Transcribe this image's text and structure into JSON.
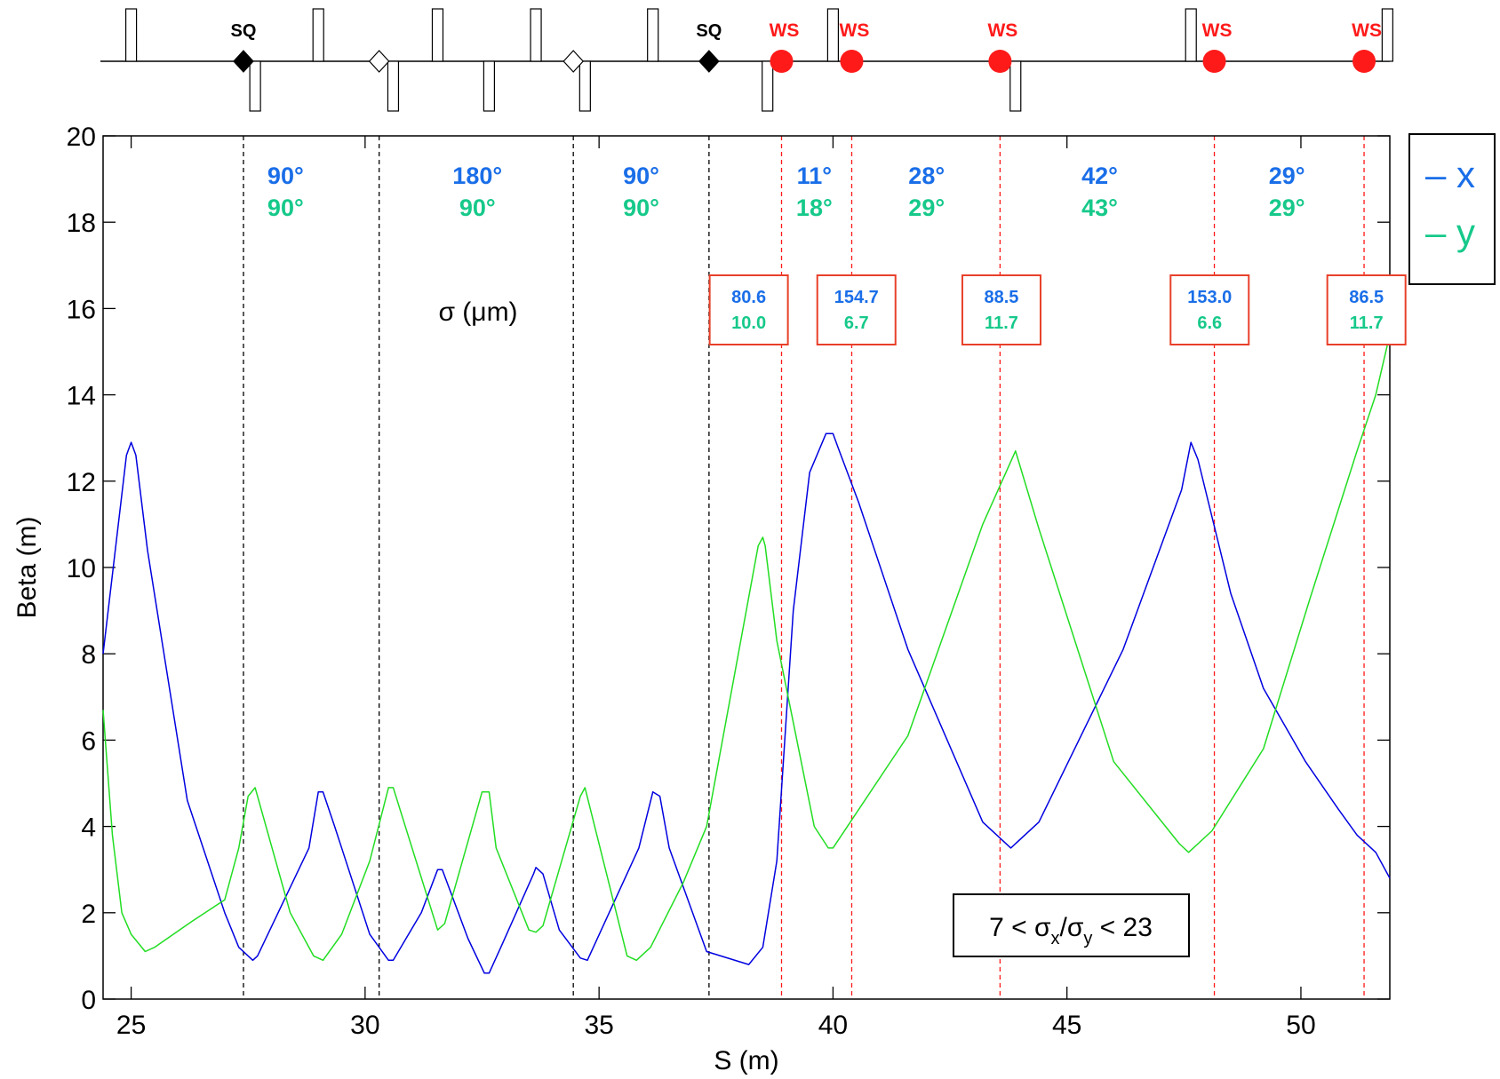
{
  "chart_data": {
    "type": "line",
    "xlabel": "S (m)",
    "ylabel": "Beta (m)",
    "xlim": [
      24.4,
      51.9
    ],
    "ylim": [
      0,
      20
    ],
    "x_ticks": [
      "25",
      "30",
      "35",
      "40",
      "45",
      "50"
    ],
    "y_ticks": [
      "0",
      "2",
      "4",
      "6",
      "8",
      "10",
      "12",
      "14",
      "16",
      "18",
      "20"
    ],
    "colors": {
      "x": "#0000e0",
      "y": "#22dd22",
      "x_label": "#1a6ee8",
      "y_label": "#16c98a",
      "ws": "#ff1a1a",
      "box": "#e8402a"
    },
    "series": [
      {
        "name": "x",
        "x": [
          24.4,
          24.9,
          25.0,
          25.1,
          25.35,
          26.2,
          27.0,
          27.3,
          27.6,
          27.7,
          28.8,
          29.0,
          29.1,
          29.35,
          30.1,
          30.5,
          30.6,
          31.2,
          31.55,
          31.65,
          32.2,
          32.55,
          32.65,
          32.9,
          33.6,
          33.65,
          33.8,
          34.15,
          34.6,
          34.75,
          35.85,
          36.15,
          36.3,
          36.5,
          37.3,
          38.2,
          38.5,
          38.8,
          39.15,
          39.5,
          39.85,
          40.0,
          40.1,
          40.55,
          41.6,
          43.2,
          43.8,
          44.4,
          46.2,
          47.45,
          47.65,
          47.8,
          48.5,
          49.2,
          50.1,
          50.8,
          51.2,
          51.6,
          51.9
        ],
        "y": [
          8.0,
          12.6,
          12.9,
          12.6,
          10.4,
          4.6,
          2.0,
          1.2,
          0.9,
          1.0,
          3.5,
          4.8,
          4.8,
          4.0,
          1.5,
          0.9,
          0.9,
          2.0,
          3.0,
          3.0,
          1.4,
          0.6,
          0.6,
          1.2,
          2.9,
          3.05,
          2.9,
          1.6,
          0.95,
          0.9,
          3.5,
          4.8,
          4.7,
          3.5,
          1.1,
          0.8,
          1.2,
          3.2,
          9.0,
          12.2,
          13.1,
          13.1,
          12.8,
          11.5,
          8.1,
          4.1,
          3.5,
          4.1,
          8.1,
          11.8,
          12.9,
          12.5,
          9.4,
          7.2,
          5.5,
          4.4,
          3.8,
          3.4,
          2.8
        ]
      },
      {
        "name": "y",
        "x": [
          24.4,
          24.6,
          24.8,
          25.0,
          25.3,
          25.5,
          26.3,
          27.0,
          27.3,
          27.5,
          27.65,
          28.4,
          28.9,
          29.1,
          29.5,
          30.1,
          30.5,
          30.6,
          31.55,
          31.7,
          32.5,
          32.65,
          32.8,
          33.5,
          33.65,
          33.8,
          34.6,
          34.7,
          35.6,
          35.8,
          36.1,
          36.8,
          37.3,
          38.4,
          38.5,
          38.55,
          38.8,
          39.6,
          39.9,
          40.0,
          41.6,
          43.2,
          43.9,
          44.4,
          46.0,
          47.4,
          47.6,
          48.1,
          49.2,
          50.2,
          51.2,
          51.6,
          51.9
        ],
        "y": [
          6.7,
          3.8,
          2.0,
          1.5,
          1.1,
          1.2,
          1.8,
          2.3,
          3.5,
          4.7,
          4.9,
          2.0,
          1.0,
          0.9,
          1.5,
          3.2,
          4.9,
          4.9,
          1.6,
          1.75,
          4.8,
          4.8,
          3.5,
          1.6,
          1.55,
          1.7,
          4.7,
          4.9,
          1.0,
          0.9,
          1.2,
          2.7,
          4.0,
          10.5,
          10.7,
          10.5,
          8.3,
          4.0,
          3.5,
          3.5,
          6.1,
          11.0,
          12.7,
          10.9,
          5.5,
          3.6,
          3.4,
          3.9,
          5.8,
          9.3,
          12.7,
          14.0,
          15.4
        ]
      }
    ],
    "legend": {
      "position": "outside-right",
      "entries": [
        {
          "label": "– x",
          "color": "#1a6ee8"
        },
        {
          "label": "– y",
          "color": "#16c98a"
        }
      ]
    },
    "sigma_label": "σ (μm)",
    "ratio_box": {
      "pre": "7 < σ",
      "sub_x": "x",
      "mid": "/σ",
      "sub_y": "y",
      "post": " < 23"
    },
    "segment_lines": [
      {
        "x": 27.4,
        "color": "black"
      },
      {
        "x": 30.3,
        "color": "black"
      },
      {
        "x": 34.45,
        "color": "black"
      },
      {
        "x": 37.35,
        "color": "black"
      },
      {
        "x": 38.9,
        "color": "red"
      },
      {
        "x": 40.4,
        "color": "red"
      },
      {
        "x": 43.57,
        "color": "red"
      },
      {
        "x": 48.15,
        "color": "red"
      },
      {
        "x": 51.35,
        "color": "red"
      }
    ],
    "phase_advances": [
      {
        "x": 28.3,
        "px": "90°",
        "py": "90°"
      },
      {
        "x": 29.9,
        "px": "",
        "py": ""
      },
      {
        "x": 32.4,
        "px": "180°",
        "py": "90°"
      },
      {
        "x": 35.9,
        "px": "90°",
        "py": "90°"
      },
      {
        "x": 39.6,
        "px": "11°",
        "py": "18°"
      },
      {
        "x": 42.0,
        "px": "28°",
        "py": "29°"
      },
      {
        "x": 45.7,
        "px": "42°",
        "py": "43°"
      },
      {
        "x": 49.7,
        "px": "29°",
        "py": "29°"
      }
    ],
    "beam_sizes": [
      {
        "x": 38.2,
        "sx": "80.6",
        "sy": "10.0"
      },
      {
        "x": 40.5,
        "sx": "154.7",
        "sy": "6.7"
      },
      {
        "x": 43.6,
        "sx": "88.5",
        "sy": "11.7"
      },
      {
        "x": 48.05,
        "sx": "153.0",
        "sy": "6.6"
      },
      {
        "x": 51.4,
        "sx": "86.5",
        "sy": "11.7"
      }
    ],
    "lattice": {
      "quads_up": [
        25.0,
        29.0,
        31.55,
        33.65,
        36.15,
        40.0,
        47.65,
        51.85
      ],
      "quads_down": [
        27.65,
        30.6,
        32.65,
        34.7,
        38.6,
        43.9
      ],
      "skew_quads": [
        {
          "x": 27.4,
          "label": "SQ",
          "filled": true
        },
        {
          "x": 30.3,
          "label": "",
          "filled": false
        },
        {
          "x": 34.45,
          "label": "",
          "filled": false
        },
        {
          "x": 37.35,
          "label": "SQ",
          "filled": true
        }
      ],
      "wire_scanners": [
        {
          "x": 38.9,
          "label": "WS"
        },
        {
          "x": 40.4,
          "label": "WS"
        },
        {
          "x": 43.57,
          "label": "WS"
        },
        {
          "x": 48.15,
          "label": "WS"
        },
        {
          "x": 51.35,
          "label": "WS"
        }
      ]
    }
  }
}
